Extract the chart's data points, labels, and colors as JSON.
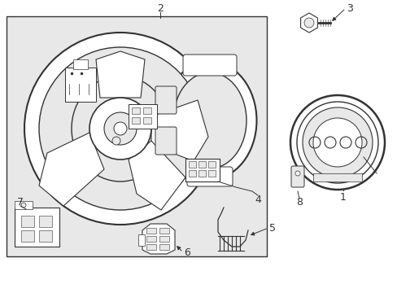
{
  "bg_color": "#ffffff",
  "box_bg": "#e8e8e8",
  "line_color": "#333333",
  "fig_w": 4.89,
  "fig_h": 3.6,
  "dpi": 100
}
